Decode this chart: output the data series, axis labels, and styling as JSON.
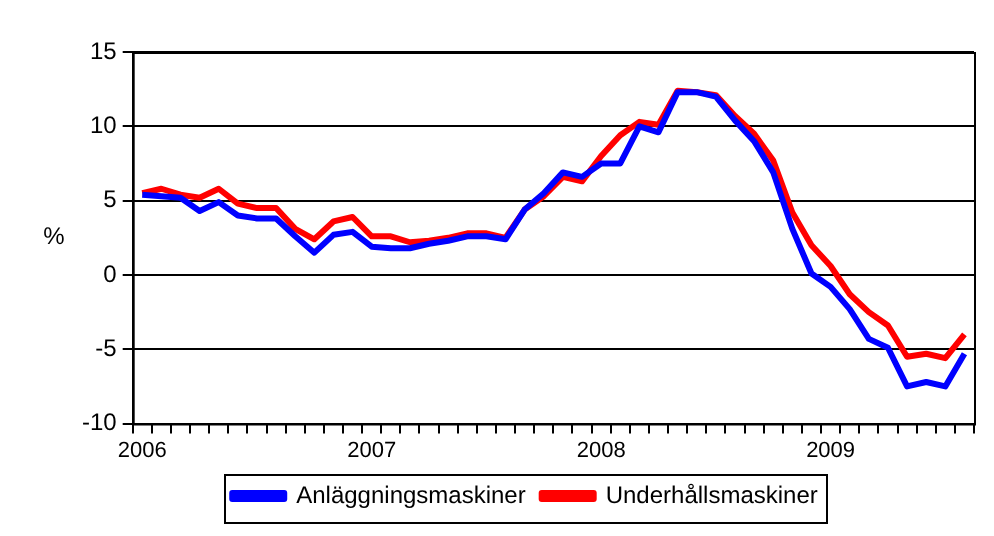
{
  "chart_data": {
    "type": "line",
    "ylabel": "%",
    "categories": [
      "2006",
      null,
      null,
      null,
      null,
      null,
      null,
      null,
      null,
      null,
      null,
      null,
      "2007",
      null,
      null,
      null,
      null,
      null,
      null,
      null,
      null,
      null,
      null,
      null,
      "2008",
      null,
      null,
      null,
      null,
      null,
      null,
      null,
      null,
      null,
      null,
      null,
      "2009",
      null,
      null,
      null,
      null,
      null,
      null,
      null
    ],
    "series": [
      {
        "name": "Anläggningsmaskiner",
        "color": "#0000ff",
        "values": [
          5.4,
          5.3,
          5.2,
          4.3,
          4.9,
          4.0,
          3.8,
          3.8,
          2.6,
          1.5,
          2.7,
          2.9,
          1.9,
          1.8,
          1.8,
          2.1,
          2.3,
          2.6,
          2.6,
          2.4,
          4.4,
          5.5,
          6.9,
          6.6,
          7.5,
          7.5,
          10.0,
          9.6,
          12.3,
          12.3,
          12.0,
          10.4,
          9.0,
          6.9,
          3.1,
          0.1,
          -0.8,
          -2.3,
          -4.3,
          -4.9,
          -7.5,
          -7.2,
          -7.5,
          -5.3
        ]
      },
      {
        "name": "Underhållsmaskiner",
        "color": "#ff0000",
        "values": [
          5.5,
          5.8,
          5.4,
          5.2,
          5.8,
          4.8,
          4.5,
          4.5,
          3.1,
          2.4,
          3.6,
          3.9,
          2.6,
          2.6,
          2.2,
          2.3,
          2.5,
          2.8,
          2.8,
          2.5,
          4.4,
          5.3,
          6.6,
          6.3,
          8.0,
          9.4,
          10.3,
          10.1,
          12.4,
          12.3,
          12.1,
          10.7,
          9.5,
          7.7,
          4.2,
          2.0,
          0.6,
          -1.3,
          -2.5,
          -3.4,
          -5.5,
          -5.3,
          -5.6,
          -4.0
        ]
      }
    ],
    "ylim": [
      -10,
      15
    ],
    "yticks": [
      -10,
      -5,
      0,
      5,
      10,
      15
    ],
    "grid": "y",
    "legend": "bottom",
    "marker": "none",
    "line_style": "solid"
  }
}
